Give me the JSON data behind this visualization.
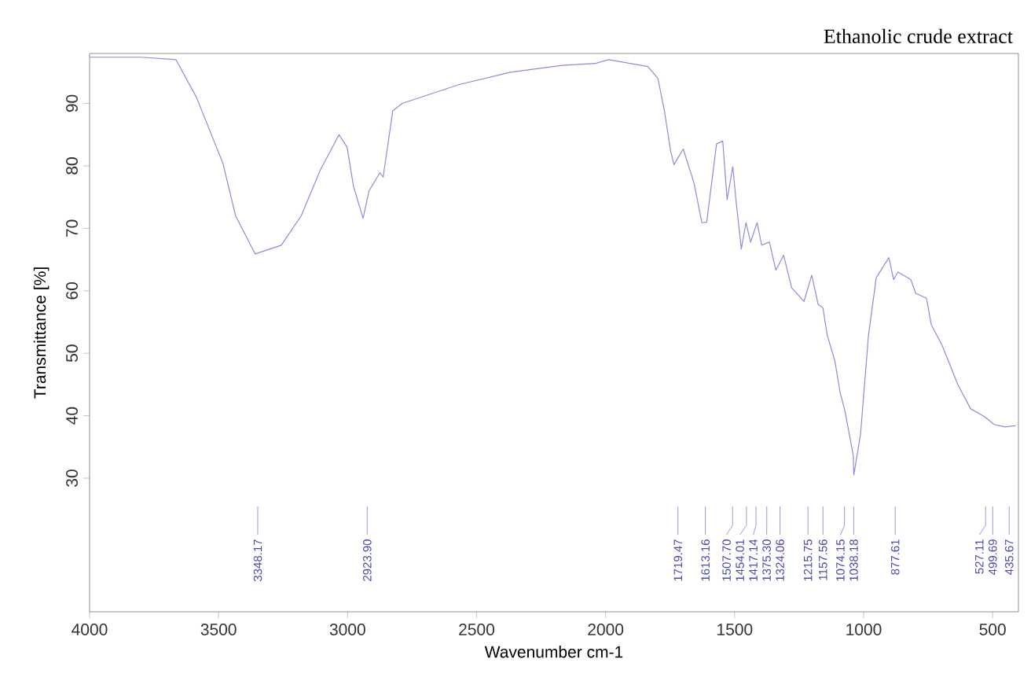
{
  "chart_data": {
    "type": "line",
    "title": "Ethanolic crude extract",
    "xlabel": "Wavenumber cm-1",
    "ylabel": "Transmittance [%]",
    "xlim": [
      4000,
      400
    ],
    "ylim": [
      8.6,
      98
    ],
    "xticks": [
      4000,
      3500,
      3000,
      2500,
      2000,
      1500,
      1000,
      500
    ],
    "yticks": [
      30,
      40,
      50,
      60,
      70,
      80,
      90
    ],
    "series": [
      {
        "color": "#8c8cdc",
        "x": [
          4000,
          3800,
          3665,
          3586,
          3483,
          3434,
          3358,
          3257,
          3180,
          3105,
          3033,
          3002,
          2977,
          2940,
          2917,
          2875,
          2862,
          2825,
          2788,
          2570,
          2369,
          2168,
          2040,
          1988,
          1836,
          1797,
          1772,
          1748,
          1735,
          1699,
          1657,
          1627,
          1608,
          1570,
          1546,
          1529,
          1507,
          1496,
          1474,
          1456,
          1438,
          1413,
          1395,
          1365,
          1340,
          1310,
          1279,
          1231,
          1201,
          1176,
          1158,
          1141,
          1111,
          1091,
          1072,
          1040,
          1038,
          1012,
          981,
          951,
          902,
          884,
          867,
          817,
          798,
          756,
          738,
          695,
          634,
          585,
          533,
          494,
          452,
          411
        ],
        "values": [
          97.4,
          97.4,
          97,
          91,
          80.4,
          72,
          65.9,
          67.3,
          72,
          79.4,
          85,
          83,
          76.7,
          71.6,
          76,
          78.9,
          78.2,
          88.8,
          90,
          93,
          95,
          96.1,
          96.4,
          97,
          95.9,
          94,
          88.8,
          82.4,
          80.2,
          82.7,
          77.2,
          70.9,
          71,
          83.5,
          84,
          74.6,
          79.9,
          75,
          66.7,
          70.9,
          67.8,
          70.9,
          67.3,
          67.8,
          63.3,
          65.7,
          60.5,
          58.3,
          62.5,
          57.8,
          57.3,
          52.9,
          48.7,
          43.7,
          40.7,
          33.6,
          30.5,
          37,
          52.9,
          62.1,
          65.3,
          61.8,
          63,
          61.8,
          59.6,
          58.8,
          54.6,
          51.2,
          44.9,
          41.1,
          39.9,
          38.6,
          38.2,
          38.4
        ]
      }
    ],
    "ref_lines": [
      {
        "axis": "x",
        "value": 3348.17,
        "label": "3348.17",
        "color": "#8080c8"
      },
      {
        "axis": "x",
        "value": 2923.9,
        "label": "2923.90",
        "color": "#8080c8"
      },
      {
        "axis": "x",
        "value": 1719.47,
        "label": "1719.47",
        "color": "#8080c8"
      },
      {
        "axis": "x",
        "value": 1613.16,
        "label": "1613.16",
        "color": "#8080c8"
      },
      {
        "axis": "x",
        "value": 1507.7,
        "label": "1507.70",
        "color": "#8080c8"
      },
      {
        "axis": "x",
        "value": 1454.01,
        "label": "1454.01",
        "color": "#8080c8"
      },
      {
        "axis": "x",
        "value": 1417.14,
        "label": "1417.14",
        "color": "#8080c8"
      },
      {
        "axis": "x",
        "value": 1375.3,
        "label": "1375.30",
        "color": "#8080c8"
      },
      {
        "axis": "x",
        "value": 1324.06,
        "label": "1324.06",
        "color": "#8080c8"
      },
      {
        "axis": "x",
        "value": 1215.75,
        "label": "1215.75",
        "color": "#8080c8"
      },
      {
        "axis": "x",
        "value": 1157.56,
        "label": "1157.56",
        "color": "#8080c8"
      },
      {
        "axis": "x",
        "value": 1074.15,
        "label": "1074.15",
        "color": "#8080c8"
      },
      {
        "axis": "x",
        "value": 1038.18,
        "label": "1038.18",
        "color": "#8080c8"
      },
      {
        "axis": "x",
        "value": 877.61,
        "label": "877.61",
        "color": "#8080c8"
      },
      {
        "axis": "x",
        "value": 527.11,
        "label": "527.11",
        "color": "#8080c8"
      },
      {
        "axis": "x",
        "value": 499.69,
        "label": "499.69",
        "color": "#8080c8"
      },
      {
        "axis": "x",
        "value": 435.67,
        "label": "435.67",
        "color": "#8080c8"
      }
    ]
  }
}
